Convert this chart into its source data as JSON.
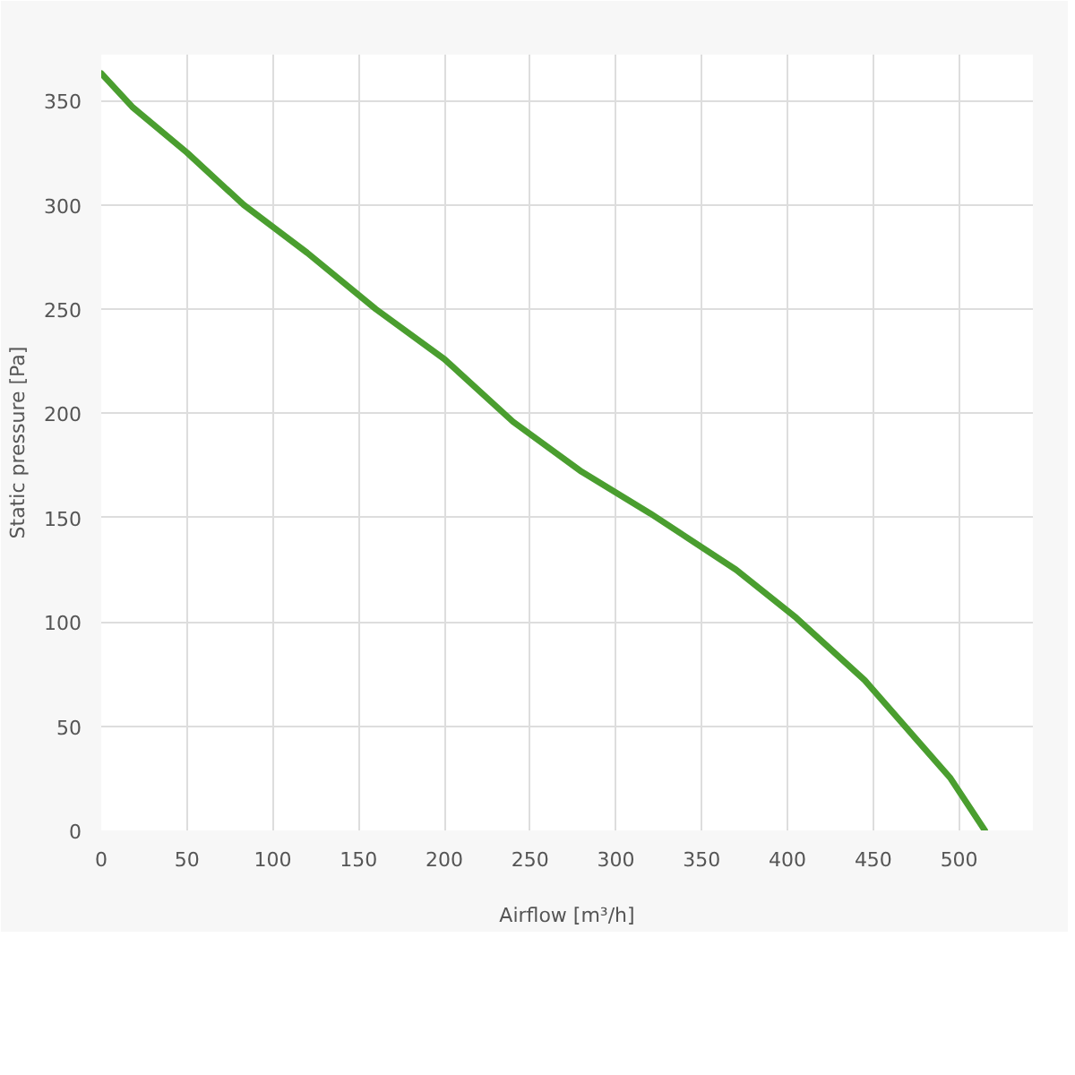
{
  "chart_data": {
    "type": "line",
    "xlabel": "Airflow [m³/h]",
    "ylabel": "Static pressure [Pa]",
    "xlim": [
      0,
      543
    ],
    "ylim": [
      0,
      372
    ],
    "xticks": [
      0,
      50,
      100,
      150,
      200,
      250,
      300,
      350,
      400,
      450,
      500
    ],
    "yticks": [
      0,
      50,
      100,
      150,
      200,
      250,
      300,
      350
    ],
    "grid": true,
    "marker": "none",
    "line_style": "solid",
    "series": [
      {
        "color": "#4a9e2f",
        "x": [
          0,
          18,
          50,
          83,
          120,
          160,
          200,
          240,
          280,
          320,
          370,
          405,
          445,
          495,
          515
        ],
        "values": [
          363,
          347,
          325,
          300,
          277,
          250,
          226,
          196,
          172,
          152,
          125,
          102,
          72,
          25,
          0
        ]
      }
    ]
  }
}
